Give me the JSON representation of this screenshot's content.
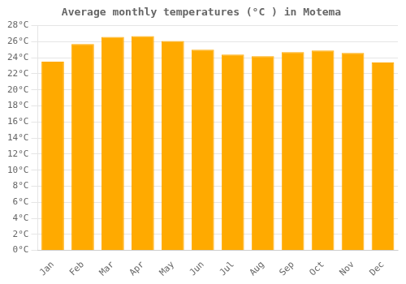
{
  "chart_data": {
    "type": "bar",
    "title": "Average monthly temperatures (°C ) in Motema",
    "categories": [
      "Jan",
      "Feb",
      "Mar",
      "Apr",
      "May",
      "Jun",
      "Jul",
      "Aug",
      "Sep",
      "Oct",
      "Nov",
      "Dec"
    ],
    "values": [
      23.5,
      25.7,
      26.6,
      26.7,
      26.1,
      25.0,
      24.4,
      24.2,
      24.7,
      24.9,
      24.6,
      23.4
    ],
    "color": "#FFAA00",
    "ylim": [
      0,
      28
    ],
    "yticks": [
      {
        "value": 0,
        "label": "0°C"
      },
      {
        "value": 2,
        "label": "2°C"
      },
      {
        "value": 4,
        "label": "4°C"
      },
      {
        "value": 6,
        "label": "6°C"
      },
      {
        "value": 8,
        "label": "8°C"
      },
      {
        "value": 10,
        "label": "10°C"
      },
      {
        "value": 12,
        "label": "12°C"
      },
      {
        "value": 14,
        "label": "14°C"
      },
      {
        "value": 16,
        "label": "16°C"
      },
      {
        "value": 18,
        "label": "18°C"
      },
      {
        "value": 20,
        "label": "20°C"
      },
      {
        "value": 22,
        "label": "22°C"
      },
      {
        "value": 24,
        "label": "24°C"
      },
      {
        "value": 26,
        "label": "26°C"
      },
      {
        "value": 28,
        "label": "28°C"
      }
    ],
    "grid": true
  }
}
